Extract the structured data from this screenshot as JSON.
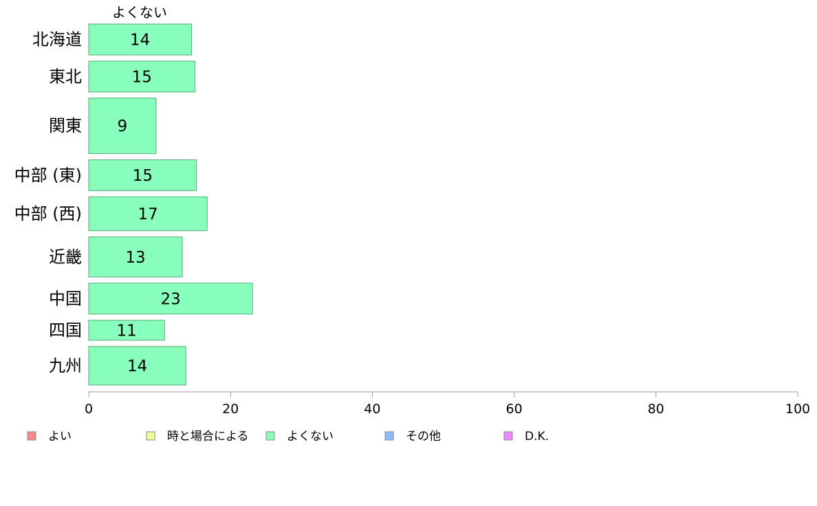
{
  "chart_data": {
    "type": "bar",
    "orientation": "horizontal",
    "panel_label": "よくない",
    "categories": [
      "北海道",
      "東北",
      "関東",
      "中部 (東)",
      "中部 (西)",
      "近畿",
      "中国",
      "四国",
      "九州"
    ],
    "series": [
      {
        "name": "よくない",
        "color": "#88ffbb",
        "values": [
          14.5,
          15,
          9.5,
          15.2,
          16.7,
          13.2,
          23.1,
          10.7,
          13.7
        ],
        "labels": [
          "14",
          "15",
          "9",
          "15",
          "17",
          "13",
          "23",
          "11",
          "14"
        ]
      }
    ],
    "bar_widths_relative": [
      1.0,
      1.0,
      1.8,
      1.0,
      1.1,
      1.3,
      1.0,
      0.65,
      1.25
    ],
    "xlim": [
      0,
      100
    ],
    "xticks": [
      0,
      20,
      40,
      60,
      80,
      100
    ],
    "xtick_labels": [
      "0",
      "20",
      "40",
      "60",
      "80",
      "100"
    ],
    "xlabel": "",
    "ylabel": "",
    "grid": false,
    "legend_position": "bottom",
    "legend": [
      {
        "label": "よい",
        "color": "#ff8888"
      },
      {
        "label": "時と場合による",
        "color": "#eeff99"
      },
      {
        "label": "よくない",
        "color": "#88ffbb"
      },
      {
        "label": "その他",
        "color": "#88bbff"
      },
      {
        "label": "D.K.",
        "color": "#ee88ff"
      }
    ],
    "bar_stroke": "#55aa77",
    "axis_color": "#999999"
  }
}
